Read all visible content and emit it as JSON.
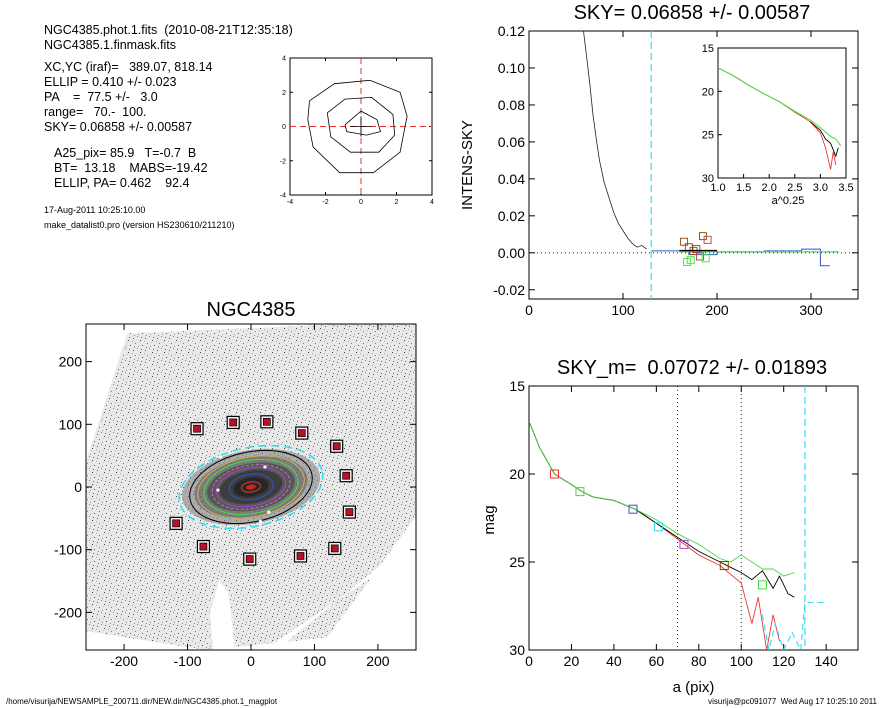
{
  "info": {
    "lines": [
      "NGC4385.phot.1.fits  (2010-08-21T12:35:18)",
      "NGC4385.1.finmask.fits",
      "XC,YC (iraf)=   389.07, 818.14",
      "ELLIP = 0.410 +/- 0.023",
      "PA    =  77.5 +/-   3.0",
      "range=   70.-  100.",
      "SKY= 0.06858 +/- 0.00587",
      "A25_pix= 85.9   T=-0.7  B",
      "BT=  13.18    MABS=-19.42",
      "ELLIP, PA= 0.462    92.4"
    ],
    "date_line": "17-Aug-2011 10:25:10.00",
    "program_line": "make_datalist0.pro (version HS230610/211210)"
  },
  "footer": {
    "left": "/home/visurija/NEWSAMPLE_200711.dir/NEW.dir/NGC4385.phot.1_magplot",
    "right": "visurija@pc091077  Wed Aug 17 10:25:10 2011"
  },
  "colors": {
    "cyan": "#33ddee",
    "red": "#ee3333",
    "green": "#44dd44",
    "blue": "#3355cc",
    "magenta": "#aa44cc",
    "black": "#000000",
    "gray": "#777777",
    "brown": "#884400"
  },
  "chart_data": [
    {
      "id": "contour",
      "type": "contour",
      "title": "",
      "xlim": [
        -4,
        4
      ],
      "ylim": [
        -4,
        4
      ],
      "xticks": [
        -4,
        -2,
        0,
        2,
        4
      ],
      "yticks": [
        -4,
        -2,
        0,
        2,
        4
      ],
      "contours": [
        [
          [
            -2.9,
            1.5
          ],
          [
            -1.5,
            2.5
          ],
          [
            0.5,
            2.7
          ],
          [
            2.2,
            2.0
          ],
          [
            2.6,
            0.6
          ],
          [
            2.2,
            -1.5
          ],
          [
            0.7,
            -2.7
          ],
          [
            -1.2,
            -2.7
          ],
          [
            -2.7,
            -1.2
          ],
          [
            -3.0,
            0.4
          ],
          [
            -2.9,
            1.5
          ]
        ],
        [
          [
            -1.9,
            0.8
          ],
          [
            -0.9,
            1.6
          ],
          [
            0.6,
            1.7
          ],
          [
            1.8,
            0.7
          ],
          [
            1.9,
            -0.5
          ],
          [
            1.0,
            -1.5
          ],
          [
            -0.6,
            -1.5
          ],
          [
            -1.7,
            -0.6
          ],
          [
            -1.9,
            0.8
          ]
        ],
        [
          [
            -0.9,
            0.1
          ],
          [
            0.0,
            0.9
          ],
          [
            0.9,
            0.4
          ],
          [
            1.1,
            -0.3
          ],
          [
            0.3,
            -0.5
          ],
          [
            -0.8,
            -0.3
          ],
          [
            -0.9,
            0.1
          ]
        ]
      ]
    },
    {
      "id": "sky",
      "type": "line",
      "title": "SKY= 0.06858 +/- 0.00587",
      "xlabel": "",
      "ylabel": "INTENS-SKY",
      "xlim": [
        0,
        350
      ],
      "ylim": [
        -0.025,
        0.12
      ],
      "xticks": [
        0,
        100,
        200,
        300
      ],
      "yticks": [
        -0.02,
        0.0,
        0.02,
        0.04,
        0.06,
        0.08,
        0.1,
        0.12
      ],
      "ytick_labels": [
        "-0.02",
        "0.00",
        "0.02",
        "0.04",
        "0.06",
        "0.08",
        "0.10",
        "0.12"
      ],
      "profile": [
        [
          58,
          0.12
        ],
        [
          62,
          0.103
        ],
        [
          65,
          0.09
        ],
        [
          68,
          0.075
        ],
        [
          72,
          0.06
        ],
        [
          75,
          0.05
        ],
        [
          80,
          0.038
        ],
        [
          85,
          0.03
        ],
        [
          90,
          0.022
        ],
        [
          95,
          0.016
        ],
        [
          100,
          0.012
        ],
        [
          105,
          0.008
        ],
        [
          110,
          0.005
        ],
        [
          115,
          0.003
        ],
        [
          120,
          0.004
        ],
        [
          125,
          0.002
        ]
      ],
      "sky_steps": [
        [
          130,
          0.001
        ],
        [
          170,
          0.001
        ],
        [
          170,
          -0.001
        ],
        [
          200,
          -0.001
        ],
        [
          200,
          0.0005
        ],
        [
          250,
          0.0005
        ],
        [
          250,
          0.001
        ],
        [
          290,
          0.001
        ],
        [
          290,
          0.002
        ],
        [
          310,
          0.002
        ],
        [
          310,
          -0.007
        ],
        [
          320,
          -0.007
        ]
      ],
      "sky_range": [
        130,
        330
      ],
      "sky_squares": [
        [
          165,
          0.006
        ],
        [
          170,
          0.003
        ],
        [
          178,
          0.002
        ],
        [
          185,
          0.009
        ],
        [
          190,
          0.007
        ],
        [
          175,
          0.001
        ],
        [
          182,
          -0.002
        ],
        [
          172,
          -0.004
        ],
        [
          188,
          -0.003
        ],
        [
          168,
          -0.005
        ]
      ],
      "inset": {
        "xlabel": "a^0.25",
        "xlim": [
          1.0,
          3.5
        ],
        "ylim": [
          15,
          30
        ],
        "xticks": [
          1.0,
          1.5,
          2.0,
          2.5,
          3.0,
          3.5
        ],
        "xtick_labels": [
          "1.0",
          "1.5",
          "2.0",
          "2.5",
          "3.0",
          "3.5"
        ],
        "yticks": [
          15,
          20,
          25,
          30
        ],
        "green": [
          [
            1.0,
            17.3
          ],
          [
            1.3,
            18.2
          ],
          [
            1.6,
            19.3
          ],
          [
            1.9,
            20.3
          ],
          [
            2.2,
            21.2
          ],
          [
            2.5,
            22.3
          ],
          [
            2.8,
            23.3
          ],
          [
            3.0,
            24.2
          ],
          [
            3.2,
            25.2
          ],
          [
            3.3,
            25.5
          ],
          [
            3.4,
            26.3
          ]
        ],
        "red": [
          [
            1.0,
            17.3
          ],
          [
            1.3,
            18.2
          ],
          [
            1.6,
            19.3
          ],
          [
            1.9,
            20.3
          ],
          [
            2.2,
            21.2
          ],
          [
            2.5,
            22.4
          ],
          [
            2.8,
            23.5
          ],
          [
            3.0,
            24.8
          ],
          [
            3.1,
            26.5
          ],
          [
            3.2,
            29.0
          ],
          [
            3.25,
            27.0
          ],
          [
            3.3,
            28.5
          ]
        ],
        "black": [
          [
            2.8,
            23.5
          ],
          [
            3.0,
            24.5
          ],
          [
            3.1,
            25.5
          ],
          [
            3.2,
            26.0
          ],
          [
            3.3,
            27.5
          ],
          [
            3.35,
            26.5
          ]
        ]
      }
    },
    {
      "id": "image",
      "type": "scatter",
      "title": "NGC4385",
      "xlim": [
        -260,
        260
      ],
      "ylim": [
        -260,
        260
      ],
      "xticks": [
        -200,
        -100,
        0,
        100,
        200
      ],
      "yticks": [
        -200,
        -100,
        0,
        100,
        200
      ],
      "center": [
        0,
        0
      ],
      "ellipses": [
        {
          "a": 115,
          "b": 62,
          "pa": 12,
          "color": "cyan"
        },
        {
          "a": 98,
          "b": 55,
          "pa": 12,
          "color": "black"
        },
        {
          "a": 75,
          "b": 42,
          "pa": 10,
          "color": "green"
        },
        {
          "a": 55,
          "b": 30,
          "pa": 10,
          "color": "magenta"
        },
        {
          "a": 35,
          "b": 20,
          "pa": 8,
          "color": "blue"
        },
        {
          "a": 15,
          "b": 8,
          "pa": 8,
          "color": "red"
        }
      ],
      "sky_boxes": [
        [
          -85,
          93
        ],
        [
          -28,
          103
        ],
        [
          25,
          104
        ],
        [
          80,
          86
        ],
        [
          135,
          65
        ],
        [
          150,
          18
        ],
        [
          -118,
          -58
        ],
        [
          -75,
          -95
        ],
        [
          -2,
          -115
        ],
        [
          78,
          -110
        ],
        [
          132,
          -98
        ],
        [
          155,
          -40
        ]
      ]
    },
    {
      "id": "mag",
      "type": "line",
      "title": "SKY_m=  0.07072 +/- 0.01893",
      "xlabel": "a (pix)",
      "ylabel": "mag",
      "xlim": [
        0,
        155
      ],
      "ylim": [
        15,
        30
      ],
      "xticks": [
        0,
        20,
        40,
        60,
        80,
        100,
        120,
        140
      ],
      "yticks": [
        15,
        20,
        25,
        30
      ],
      "vlines_dotted": [
        70,
        100
      ],
      "vline_dashed_cyan": 130,
      "series": [
        {
          "color": "green",
          "values": [
            [
              0,
              17.0
            ],
            [
              5,
              18.5
            ],
            [
              12,
              20.0
            ],
            [
              20,
              20.6
            ],
            [
              25,
              21.0
            ],
            [
              30,
              21.3
            ],
            [
              40,
              21.5
            ],
            [
              50,
              22.0
            ],
            [
              60,
              22.6
            ],
            [
              70,
              23.4
            ],
            [
              80,
              24.0
            ],
            [
              90,
              24.8
            ],
            [
              95,
              25.0
            ],
            [
              100,
              24.6
            ],
            [
              105,
              25.0
            ],
            [
              110,
              25.4
            ],
            [
              115,
              25.4
            ],
            [
              120,
              25.8
            ],
            [
              125,
              25.6
            ]
          ]
        },
        {
          "color": "black",
          "values": [
            [
              0,
              17.0
            ],
            [
              5,
              18.5
            ],
            [
              12,
              20.0
            ],
            [
              20,
              20.6
            ],
            [
              25,
              21.0
            ],
            [
              30,
              21.3
            ],
            [
              40,
              21.5
            ],
            [
              50,
              22.0
            ],
            [
              60,
              22.8
            ],
            [
              70,
              23.6
            ],
            [
              80,
              24.4
            ],
            [
              90,
              25.0
            ],
            [
              95,
              25.3
            ],
            [
              100,
              25.6
            ],
            [
              105,
              26.0
            ],
            [
              110,
              25.5
            ],
            [
              115,
              26.5
            ],
            [
              118,
              25.8
            ],
            [
              122,
              26.8
            ],
            [
              125,
              27.0
            ]
          ]
        },
        {
          "color": "red",
          "values": [
            [
              0,
              17.0
            ],
            [
              5,
              18.5
            ],
            [
              12,
              20.0
            ],
            [
              20,
              20.6
            ],
            [
              25,
              21.0
            ],
            [
              30,
              21.3
            ],
            [
              40,
              21.5
            ],
            [
              50,
              22.0
            ],
            [
              60,
              22.8
            ],
            [
              70,
              23.7
            ],
            [
              80,
              24.6
            ],
            [
              90,
              25.2
            ],
            [
              95,
              25.7
            ],
            [
              100,
              26.2
            ],
            [
              105,
              28.5
            ],
            [
              108,
              27.0
            ],
            [
              112,
              30.0
            ],
            [
              115,
              28.0
            ],
            [
              118,
              29.5
            ]
          ]
        },
        {
          "color": "cyan_dashed",
          "values": [
            [
              110,
              28.0
            ],
            [
              113,
              30.0
            ],
            [
              116,
              28.5
            ],
            [
              120,
              30.0
            ],
            [
              124,
              29.0
            ],
            [
              128,
              30.0
            ],
            [
              130,
              27.3
            ],
            [
              140,
              27.3
            ]
          ]
        }
      ],
      "markers": [
        {
          "x": 12,
          "y": 20.0,
          "color": "red"
        },
        {
          "x": 24,
          "y": 21.0,
          "color": "green"
        },
        {
          "x": 49,
          "y": 22.0,
          "color": "blue"
        },
        {
          "x": 61,
          "y": 23.0,
          "color": "cyan"
        },
        {
          "x": 73,
          "y": 24.0,
          "color": "magenta"
        },
        {
          "x": 92,
          "y": 25.2,
          "color": "brown"
        },
        {
          "x": 110,
          "y": 26.3,
          "color": "green"
        }
      ]
    }
  ]
}
